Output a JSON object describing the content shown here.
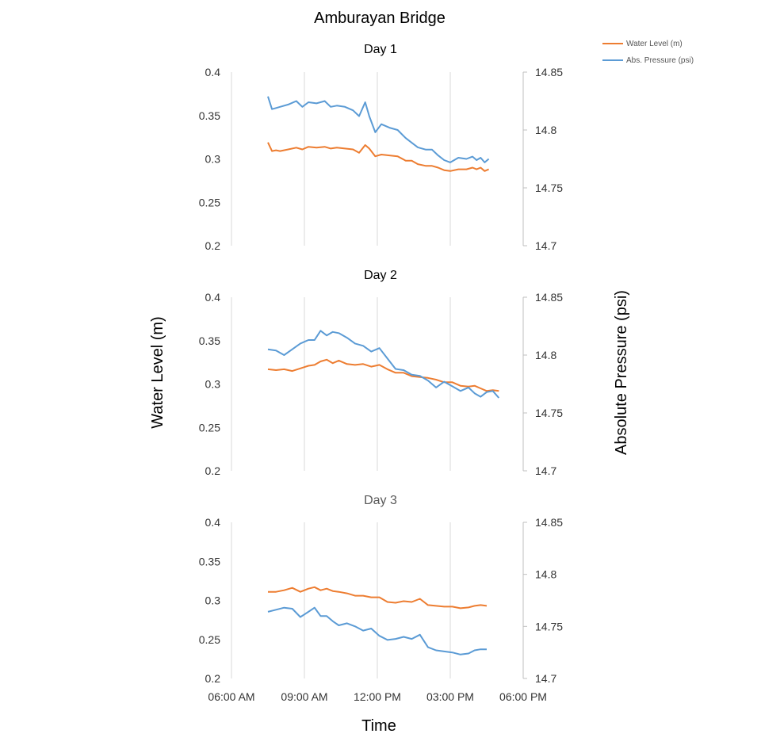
{
  "chart_data": {
    "type": "line",
    "title": "Amburayan Bridge",
    "xlabel": "Time",
    "ylabel": "Water Level (m)",
    "y2label": "Absolute Pressure (psi)",
    "x_ticks": [
      "06:00 AM",
      "09:00 AM",
      "12:00 PM",
      "03:00 PM",
      "06:00 PM"
    ],
    "x_range": [
      "06:00",
      "18:00"
    ],
    "y_range": [
      0.2,
      0.4
    ],
    "y_ticks": [
      "0.4",
      "0.35",
      "0.3",
      "0.25",
      "0.2"
    ],
    "y2_range": [
      14.7,
      14.85
    ],
    "y2_ticks": [
      "14.85",
      "14.8",
      "14.75",
      "14.7"
    ],
    "grid": "vertical",
    "legend": {
      "position": "top-right",
      "entries": [
        {
          "name": "Water Level (m)",
          "color": "#ED7D31"
        },
        {
          "name": "Abs. Pressure (psi)",
          "color": "#5B9BD5"
        }
      ]
    },
    "panels": [
      {
        "title": "Day 1",
        "series": [
          {
            "name": "Water Level (m)",
            "axis": "left",
            "color": "#ED7D31",
            "x": [
              "07:30",
              "07:40",
              "07:50",
              "08:00",
              "08:20",
              "08:40",
              "08:55",
              "09:10",
              "09:30",
              "09:50",
              "10:05",
              "10:20",
              "10:40",
              "11:00",
              "11:15",
              "11:30",
              "11:40",
              "11:55",
              "12:10",
              "12:30",
              "12:50",
              "13:10",
              "13:25",
              "13:40",
              "14:00",
              "14:15",
              "14:30",
              "14:45",
              "15:00",
              "15:20",
              "15:40",
              "15:55",
              "16:05",
              "16:15",
              "16:25",
              "16:35"
            ],
            "values": [
              0.319,
              0.309,
              0.31,
              0.309,
              0.311,
              0.313,
              0.311,
              0.314,
              0.313,
              0.314,
              0.312,
              0.313,
              0.312,
              0.311,
              0.307,
              0.316,
              0.312,
              0.303,
              0.305,
              0.304,
              0.303,
              0.298,
              0.298,
              0.294,
              0.292,
              0.292,
              0.29,
              0.287,
              0.286,
              0.288,
              0.288,
              0.29,
              0.288,
              0.29,
              0.286,
              0.288
            ]
          },
          {
            "name": "Abs. Pressure (psi)",
            "axis": "right",
            "color": "#5B9BD5",
            "x": [
              "07:30",
              "07:40",
              "07:50",
              "08:00",
              "08:20",
              "08:40",
              "08:55",
              "09:10",
              "09:30",
              "09:50",
              "10:05",
              "10:20",
              "10:40",
              "11:00",
              "11:15",
              "11:30",
              "11:40",
              "11:55",
              "12:10",
              "12:30",
              "12:50",
              "13:10",
              "13:25",
              "13:40",
              "14:00",
              "14:15",
              "14:30",
              "14:45",
              "15:00",
              "15:20",
              "15:40",
              "15:55",
              "16:05",
              "16:15",
              "16:25",
              "16:35"
            ],
            "values": [
              14.829,
              14.818,
              14.819,
              14.82,
              14.822,
              14.825,
              14.82,
              14.824,
              14.823,
              14.825,
              14.82,
              14.821,
              14.82,
              14.817,
              14.812,
              14.824,
              14.812,
              14.798,
              14.805,
              14.802,
              14.8,
              14.793,
              14.789,
              14.785,
              14.783,
              14.783,
              14.778,
              14.774,
              14.772,
              14.776,
              14.775,
              14.777,
              14.774,
              14.776,
              14.772,
              14.775
            ]
          }
        ]
      },
      {
        "title": "Day 2",
        "series": [
          {
            "name": "Water Level (m)",
            "axis": "left",
            "color": "#ED7D31",
            "x": [
              "07:30",
              "07:50",
              "08:10",
              "08:30",
              "08:50",
              "09:10",
              "09:25",
              "09:40",
              "09:55",
              "10:10",
              "10:25",
              "10:45",
              "11:05",
              "11:25",
              "11:45",
              "12:05",
              "12:25",
              "12:45",
              "13:05",
              "13:25",
              "13:45",
              "14:05",
              "14:25",
              "14:45",
              "15:05",
              "15:25",
              "15:45",
              "16:00",
              "16:15",
              "16:30",
              "16:45",
              "17:00"
            ],
            "values": [
              0.317,
              0.316,
              0.317,
              0.315,
              0.318,
              0.321,
              0.322,
              0.326,
              0.328,
              0.324,
              0.327,
              0.323,
              0.322,
              0.323,
              0.32,
              0.322,
              0.317,
              0.313,
              0.313,
              0.309,
              0.308,
              0.307,
              0.305,
              0.302,
              0.302,
              0.298,
              0.297,
              0.298,
              0.295,
              0.292,
              0.293,
              0.292
            ]
          },
          {
            "name": "Abs. Pressure (psi)",
            "axis": "right",
            "color": "#5B9BD5",
            "x": [
              "07:30",
              "07:50",
              "08:10",
              "08:30",
              "08:50",
              "09:10",
              "09:25",
              "09:40",
              "09:55",
              "10:10",
              "10:25",
              "10:45",
              "11:05",
              "11:25",
              "11:45",
              "12:05",
              "12:25",
              "12:45",
              "13:05",
              "13:25",
              "13:45",
              "14:05",
              "14:25",
              "14:45",
              "15:05",
              "15:25",
              "15:45",
              "16:00",
              "16:15",
              "16:30",
              "16:45",
              "17:00"
            ],
            "values": [
              14.805,
              14.804,
              14.8,
              14.805,
              14.81,
              14.813,
              14.813,
              14.821,
              14.817,
              14.82,
              14.819,
              14.815,
              14.81,
              14.808,
              14.803,
              14.806,
              14.797,
              14.788,
              14.787,
              14.783,
              14.782,
              14.778,
              14.772,
              14.777,
              14.773,
              14.769,
              14.772,
              14.767,
              14.764,
              14.768,
              14.769,
              14.763
            ]
          }
        ]
      },
      {
        "title": "Day 3",
        "series": [
          {
            "name": "Water Level (m)",
            "axis": "left",
            "color": "#ED7D31",
            "x": [
              "07:30",
              "07:50",
              "08:10",
              "08:30",
              "08:50",
              "09:10",
              "09:25",
              "09:40",
              "09:55",
              "10:10",
              "10:25",
              "10:45",
              "11:05",
              "11:25",
              "11:45",
              "12:05",
              "12:25",
              "12:45",
              "13:05",
              "13:25",
              "13:45",
              "14:05",
              "14:25",
              "14:45",
              "15:05",
              "15:25",
              "15:45",
              "16:00",
              "16:15",
              "16:30"
            ],
            "values": [
              0.311,
              0.311,
              0.313,
              0.316,
              0.311,
              0.315,
              0.317,
              0.313,
              0.315,
              0.312,
              0.311,
              0.309,
              0.306,
              0.306,
              0.304,
              0.304,
              0.298,
              0.297,
              0.299,
              0.298,
              0.302,
              0.294,
              0.293,
              0.292,
              0.292,
              0.29,
              0.291,
              0.293,
              0.294,
              0.293
            ]
          },
          {
            "name": "Abs. Pressure (psi)",
            "axis": "right",
            "color": "#5B9BD5",
            "x": [
              "07:30",
              "07:50",
              "08:10",
              "08:30",
              "08:50",
              "09:10",
              "09:25",
              "09:40",
              "09:55",
              "10:10",
              "10:25",
              "10:45",
              "11:05",
              "11:25",
              "11:45",
              "12:05",
              "12:25",
              "12:45",
              "13:05",
              "13:25",
              "13:45",
              "14:05",
              "14:25",
              "14:45",
              "15:05",
              "15:25",
              "15:45",
              "16:00",
              "16:15",
              "16:30"
            ],
            "values": [
              14.764,
              14.766,
              14.768,
              14.767,
              14.759,
              14.764,
              14.768,
              14.76,
              14.76,
              14.755,
              14.751,
              14.753,
              14.75,
              14.746,
              14.748,
              14.741,
              14.737,
              14.738,
              14.74,
              14.738,
              14.742,
              14.73,
              14.727,
              14.726,
              14.725,
              14.723,
              14.724,
              14.727,
              14.728,
              14.728
            ]
          }
        ]
      }
    ]
  }
}
